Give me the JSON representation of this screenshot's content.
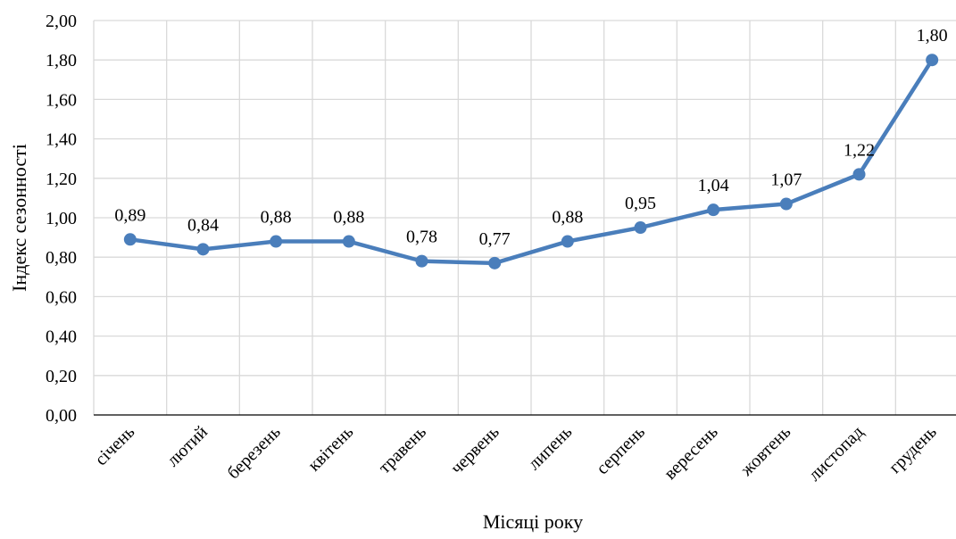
{
  "chart_data": {
    "type": "line",
    "categories": [
      "січень",
      "лютий",
      "березень",
      "квітень",
      "травень",
      "червень",
      "липень",
      "серпень",
      "вересень",
      "жовтень",
      "листопад",
      "грудень"
    ],
    "series": [
      {
        "values": [
          0.89,
          0.84,
          0.88,
          0.88,
          0.78,
          0.77,
          0.88,
          0.95,
          1.04,
          1.07,
          1.22,
          1.8
        ],
        "data_labels": [
          "0,89",
          "0,84",
          "0,88",
          "0,88",
          "0,78",
          "0,77",
          "0,88",
          "0,95",
          "1,04",
          "1,07",
          "1,22",
          "1,80"
        ],
        "color": "#4a7ebb"
      }
    ],
    "xlabel": "Місяці року",
    "ylabel": "Індекс сезонності",
    "ylim": [
      0,
      2
    ],
    "yticks": [
      "0,00",
      "0,20",
      "0,40",
      "0,60",
      "0,80",
      "1,00",
      "1,20",
      "1,40",
      "1,60",
      "1,80",
      "2,00"
    ],
    "grid": true,
    "gridColor": "#d9d9d9",
    "legend": "none"
  }
}
